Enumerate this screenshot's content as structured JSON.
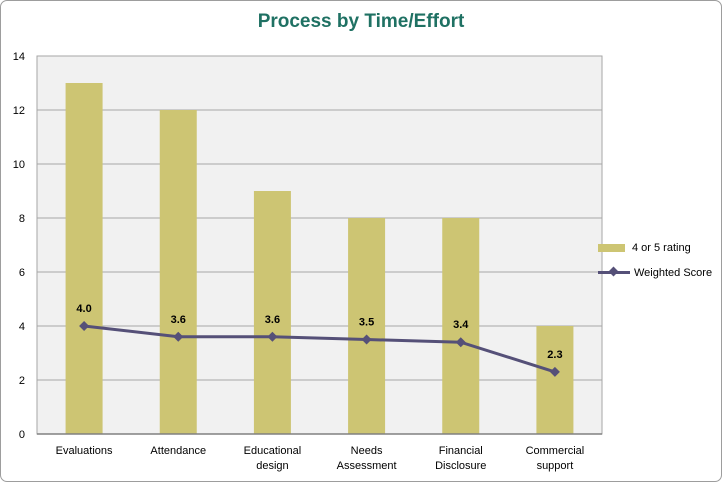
{
  "chart_data": {
    "type": "combo",
    "title": "Process by Time/Effort",
    "categories": [
      "Evaluations",
      "Attendance",
      "Educational design",
      "Needs Assessment",
      "Financial Disclosure",
      "Commercial support"
    ],
    "categories_wrapped": [
      [
        "Evaluations"
      ],
      [
        "Attendance"
      ],
      [
        "Educational",
        "design"
      ],
      [
        "Needs",
        "Assessment"
      ],
      [
        "Financial",
        "Disclosure"
      ],
      [
        "Commercial",
        "support"
      ]
    ],
    "series": [
      {
        "name": "4 or 5 rating",
        "type": "bar",
        "values": [
          13,
          12,
          9,
          8,
          8,
          4
        ],
        "color": "#cdc573"
      },
      {
        "name": "Weighted Score",
        "type": "line",
        "values": [
          4.0,
          3.6,
          3.6,
          3.5,
          3.4,
          2.3
        ],
        "labels": [
          "4.0",
          "3.6",
          "3.6",
          "3.5",
          "3.4",
          "2.3"
        ],
        "color": "#555078"
      }
    ],
    "y_axis": {
      "min": 0,
      "max": 14,
      "step": 2,
      "ticks": [
        "0",
        "2",
        "4",
        "6",
        "8",
        "10",
        "12",
        "14"
      ]
    },
    "xlabel": "",
    "ylabel": "",
    "grid": true,
    "legend_position": "right",
    "colors": {
      "title": "#1f7163",
      "plot_bg": "#f1f1f1",
      "gridline": "#a6a6a6",
      "axis_line": "#808080",
      "text": "#000000"
    }
  }
}
